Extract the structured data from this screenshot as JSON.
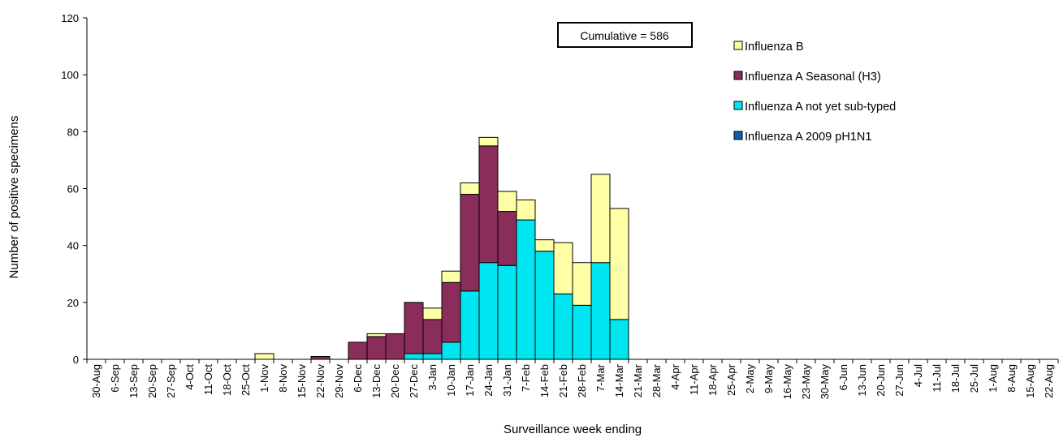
{
  "chart_data": {
    "type": "bar",
    "stacked": true,
    "xlabel": "Surveillance week ending",
    "ylabel": "Number of positive specimens",
    "ylim": [
      0,
      120
    ],
    "yticks": [
      0,
      20,
      40,
      60,
      80,
      100,
      120
    ],
    "grid": false,
    "legend_position": "top-right",
    "annotation": "Cumulative =  586",
    "categories": [
      "30-Aug",
      "6-Sep",
      "13-Sep",
      "20-Sep",
      "27-Sep",
      "4-Oct",
      "11-Oct",
      "18-Oct",
      "25-Oct",
      "1-Nov",
      "8-Nov",
      "15-Nov",
      "22-Nov",
      "29-Nov",
      "6-Dec",
      "13-Dec",
      "20-Dec",
      "27-Dec",
      "3-Jan",
      "10-Jan",
      "17-Jan",
      "24-Jan",
      "31-Jan",
      "7-Feb",
      "14-Feb",
      "21-Feb",
      "28-Feb",
      "7-Mar",
      "14-Mar",
      "21-Mar",
      "28-Mar",
      "4-Apr",
      "11-Apr",
      "18-Apr",
      "25-Apr",
      "2-May",
      "9-May",
      "16-May",
      "23-May",
      "30-May",
      "6-Jun",
      "13-Jun",
      "20-Jun",
      "27-Jun",
      "4-Jul",
      "11-Jul",
      "18-Jul",
      "25-Jul",
      "1-Aug",
      "8-Aug",
      "15-Aug",
      "22-Aug"
    ],
    "series": [
      {
        "name": "Influenza A 2009 pH1N1",
        "color": "#0F5FA8",
        "values": [
          0,
          0,
          0,
          0,
          0,
          0,
          0,
          0,
          0,
          0,
          0,
          0,
          0,
          0,
          0,
          0,
          0,
          0,
          0,
          0,
          0,
          0,
          0,
          0,
          0,
          0,
          0,
          0,
          0,
          0,
          0,
          0,
          0,
          0,
          0,
          0,
          0,
          0,
          0,
          0,
          0,
          0,
          0,
          0,
          0,
          0,
          0,
          0,
          0,
          0,
          0,
          0
        ]
      },
      {
        "name": "Influenza A not yet sub-typed",
        "color": "#00E6F0",
        "values": [
          0,
          0,
          0,
          0,
          0,
          0,
          0,
          0,
          0,
          0,
          0,
          0,
          0,
          0,
          0,
          0,
          0,
          2,
          2,
          6,
          24,
          34,
          33,
          49,
          38,
          23,
          19,
          34,
          14,
          0,
          0,
          0,
          0,
          0,
          0,
          0,
          0,
          0,
          0,
          0,
          0,
          0,
          0,
          0,
          0,
          0,
          0,
          0,
          0,
          0,
          0,
          0
        ]
      },
      {
        "name": "Influenza A Seasonal (H3)",
        "color": "#8B2D5A",
        "values": [
          0,
          0,
          0,
          0,
          0,
          0,
          0,
          0,
          0,
          0,
          0,
          0,
          1,
          0,
          6,
          8,
          9,
          18,
          12,
          21,
          34,
          41,
          19,
          0,
          0,
          0,
          0,
          0,
          0,
          0,
          0,
          0,
          0,
          0,
          0,
          0,
          0,
          0,
          0,
          0,
          0,
          0,
          0,
          0,
          0,
          0,
          0,
          0,
          0,
          0,
          0,
          0
        ]
      },
      {
        "name": "Influenza B",
        "color": "#FFFFA6",
        "values": [
          0,
          0,
          0,
          0,
          0,
          0,
          0,
          0,
          0,
          2,
          0,
          0,
          0,
          0,
          0,
          1,
          0,
          0,
          4,
          4,
          4,
          3,
          7,
          7,
          4,
          18,
          15,
          31,
          39,
          0,
          0,
          0,
          0,
          0,
          0,
          0,
          0,
          0,
          0,
          0,
          0,
          0,
          0,
          0,
          0,
          0,
          0,
          0,
          0,
          0,
          0,
          0
        ]
      }
    ],
    "legend_order": [
      "Influenza B",
      "Influenza A Seasonal (H3)",
      "Influenza A not yet sub-typed",
      "Influenza A 2009 pH1N1"
    ]
  }
}
